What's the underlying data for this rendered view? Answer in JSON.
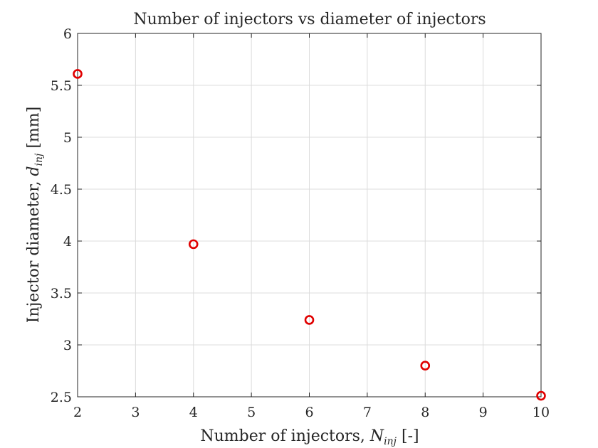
{
  "chart_data": {
    "type": "scatter",
    "title": "Number of injectors vs diameter of injectors",
    "xlabel": {
      "main": "Number of injectors, ",
      "var": "N",
      "sub": "inj",
      "unit": " [-]"
    },
    "ylabel": {
      "main": "Injector diameter, ",
      "var": "d",
      "sub": "inj",
      "unit": " [mm]"
    },
    "xlim": [
      2,
      10
    ],
    "ylim": [
      2.5,
      6
    ],
    "xticks": [
      2,
      3,
      4,
      5,
      6,
      7,
      8,
      9,
      10
    ],
    "xtick_labels": [
      "2",
      "3",
      "4",
      "5",
      "6",
      "7",
      "8",
      "9",
      "10"
    ],
    "yticks": [
      2.5,
      3,
      3.5,
      4,
      4.5,
      5,
      5.5,
      6
    ],
    "ytick_labels": [
      "2.5",
      "3",
      "3.5",
      "4",
      "4.5",
      "5",
      "5.5",
      "6"
    ],
    "grid": true,
    "marker": "circle-open",
    "marker_color": "#e00000",
    "series": [
      {
        "x": [
          2,
          4,
          6,
          8,
          10
        ],
        "y": [
          5.61,
          3.97,
          3.24,
          2.8,
          2.51
        ]
      }
    ]
  }
}
